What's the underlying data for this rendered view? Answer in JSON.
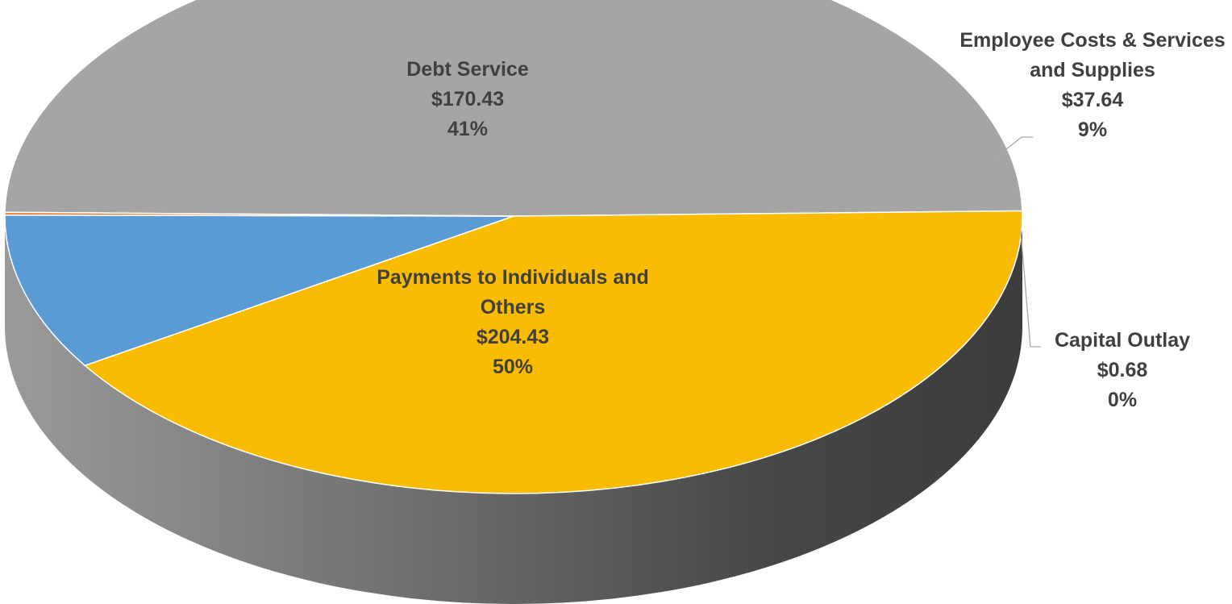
{
  "chart_data": {
    "type": "pie",
    "style": "3d",
    "currency": "$",
    "slices": [
      {
        "name": "Payments to Individuals and Others",
        "name_lines": [
          "Payments to Individuals and",
          "Others"
        ],
        "value": 204.43,
        "value_label": "$204.43",
        "percent_label": "50%",
        "color": "#a5a5a5"
      },
      {
        "name": "Debt Service",
        "name_lines": [
          "Debt Service"
        ],
        "value": 170.43,
        "value_label": "$170.43",
        "percent_label": "41%",
        "color": "#f9bc02"
      },
      {
        "name": "Employee Costs & Services and Supplies",
        "name_lines": [
          "Employee Costs & Services",
          "and Supplies"
        ],
        "value": 37.64,
        "value_label": "$37.64",
        "percent_label": "9%",
        "color": "#5b9bd5"
      },
      {
        "name": "Capital Outlay",
        "name_lines": [
          "Capital Outlay"
        ],
        "value": 0.68,
        "value_label": "$0.68",
        "percent_label": "0%",
        "color": "#ed7d31"
      }
    ],
    "legend": "none",
    "title": ""
  }
}
